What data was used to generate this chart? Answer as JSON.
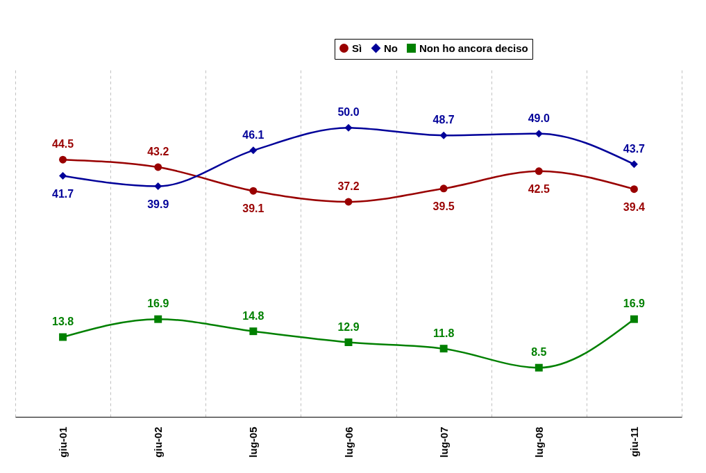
{
  "chart_data": {
    "type": "line",
    "categories": [
      "giu-01",
      "giu-02",
      "lug-05",
      "lug-06",
      "lug-07",
      "lug-08",
      "giu-11"
    ],
    "series": [
      {
        "name": "Sì",
        "color": "#990000",
        "marker": "circle",
        "values": [
          44.5,
          43.2,
          39.1,
          37.2,
          39.5,
          42.5,
          39.4
        ]
      },
      {
        "name": "No",
        "color": "#000099",
        "marker": "diamond",
        "values": [
          41.7,
          39.9,
          46.1,
          50.0,
          48.7,
          49.0,
          43.7
        ],
        "value_labels": [
          "41.7",
          "39.9",
          "46.1",
          "50.0",
          "48.7",
          "49.0",
          "43.7"
        ]
      },
      {
        "name": "Non ho ancora deciso",
        "color": "#008000",
        "marker": "square",
        "values": [
          13.8,
          16.9,
          14.8,
          12.9,
          11.8,
          8.5,
          16.9
        ]
      }
    ],
    "ylim": [
      0,
      60
    ],
    "tick_labels": "x",
    "grid": "x",
    "legend": "top right",
    "data_labels": true,
    "line_style": "solid"
  }
}
